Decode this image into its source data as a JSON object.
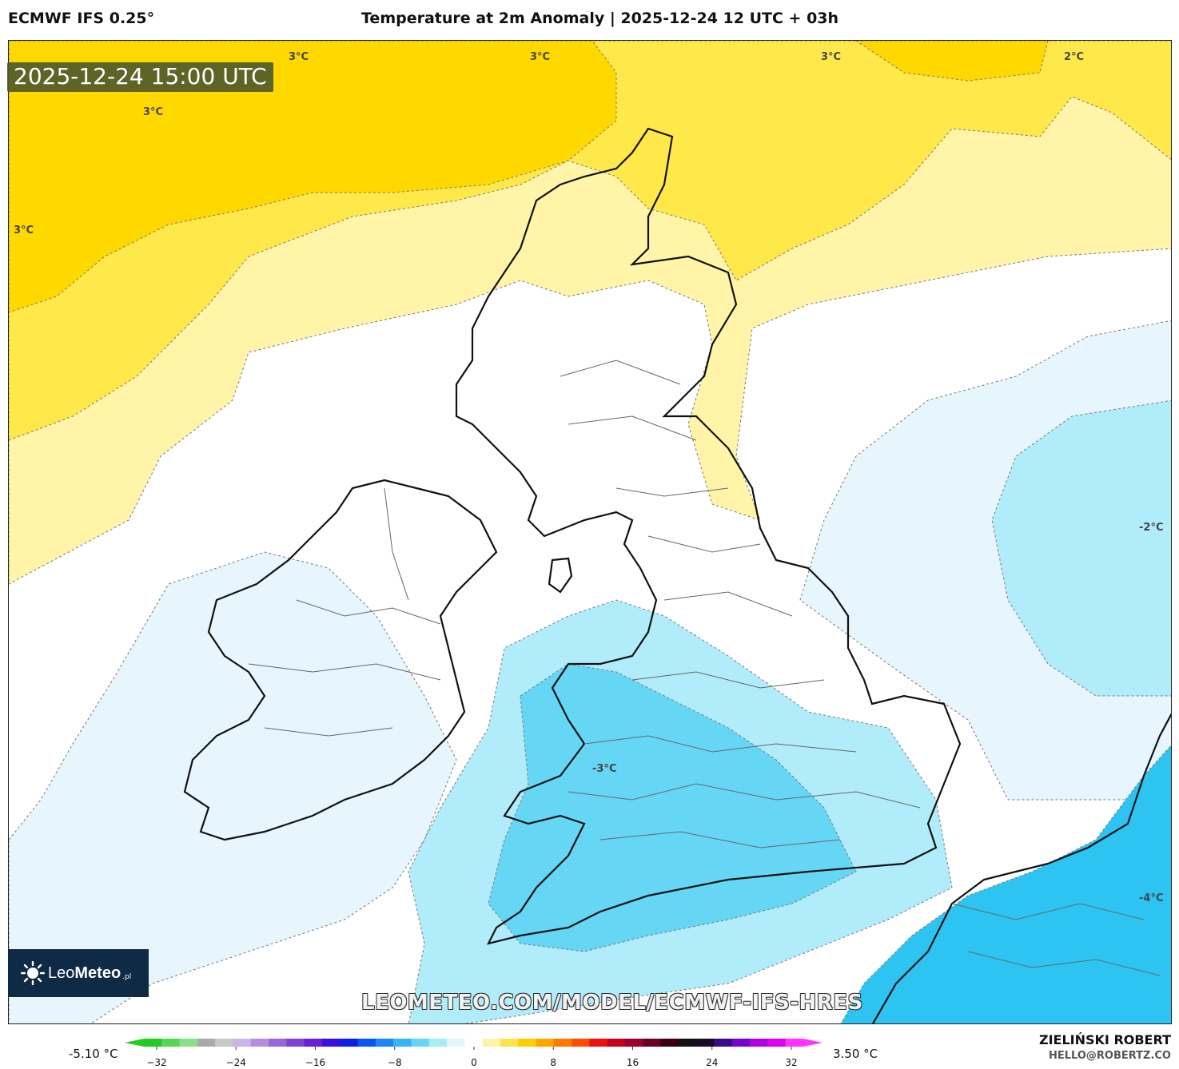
{
  "header": {
    "model": "ECMWF IFS 0.25°",
    "title": "Temperature at 2m Anomaly | 2025-12-24 12 UTC + 03h"
  },
  "valid_time": "2025-12-24 15:00 UTC",
  "contour_labels": [
    {
      "text": "3°C",
      "id": "nw-3c-a"
    },
    {
      "text": "3°C",
      "id": "nw-3c-b"
    },
    {
      "text": "3°C",
      "id": "n-3c"
    },
    {
      "text": "3°C",
      "id": "ne-3c"
    },
    {
      "text": "2°C",
      "id": "ne-2c"
    },
    {
      "text": "3°C",
      "id": "w-3c"
    },
    {
      "text": "-2°C",
      "id": "e-m2c"
    },
    {
      "text": "-3°C",
      "id": "wales-m3c"
    },
    {
      "text": "-4°C",
      "id": "se-m4c"
    }
  ],
  "logo": {
    "brand_light": "Leo",
    "brand_bold": "Meteo",
    "tld": ".pl"
  },
  "website": "LEOMETEO.COM/MODEL/ECMWF-IFS-HRES",
  "colorbar": {
    "min_label": "-5.10 °C",
    "max_label": "3.50 °C",
    "ticks": [
      "−32",
      "−24",
      "−16",
      "−8",
      "0",
      "8",
      "16",
      "24",
      "32"
    ],
    "colors": [
      "#22cc22",
      "#55d655",
      "#88e088",
      "#aaaaaa",
      "#c8c8c8",
      "#c9b6e6",
      "#b38ee0",
      "#9a66db",
      "#8040d6",
      "#6a1fd0",
      "#3a0fe0",
      "#0a1fe8",
      "#0a55f0",
      "#1a88f5",
      "#33b5f7",
      "#66d4f7",
      "#a8ecf9",
      "#e3f6fb",
      "#ffffff",
      "#fff3a6",
      "#ffe24d",
      "#ffcc00",
      "#ffa500",
      "#ff7a00",
      "#ff4d00",
      "#ee1111",
      "#c8001e",
      "#9a0030",
      "#6a0022",
      "#3a0010",
      "#111111",
      "#1a0a2a",
      "#3a0a8a",
      "#7a00c8",
      "#b000e0",
      "#e000f0",
      "#ff33ff"
    ],
    "min_value": -32,
    "max_value": 32
  },
  "author": "ZIELIŃSKI ROBERT",
  "contact": "HELLO@ROBERTZ.CO",
  "palette": {
    "warm_3": "#ffd800",
    "warm_2": "#ffe94a",
    "warm_1": "#fff4a8",
    "neutral": "#ffffff",
    "cool_1": "#e6f6fc",
    "cool_2": "#b0ecfa",
    "cool_3": "#66d6f5",
    "cool_4": "#2ec4f2",
    "land_line": "#111111",
    "border_line": "#666666"
  }
}
